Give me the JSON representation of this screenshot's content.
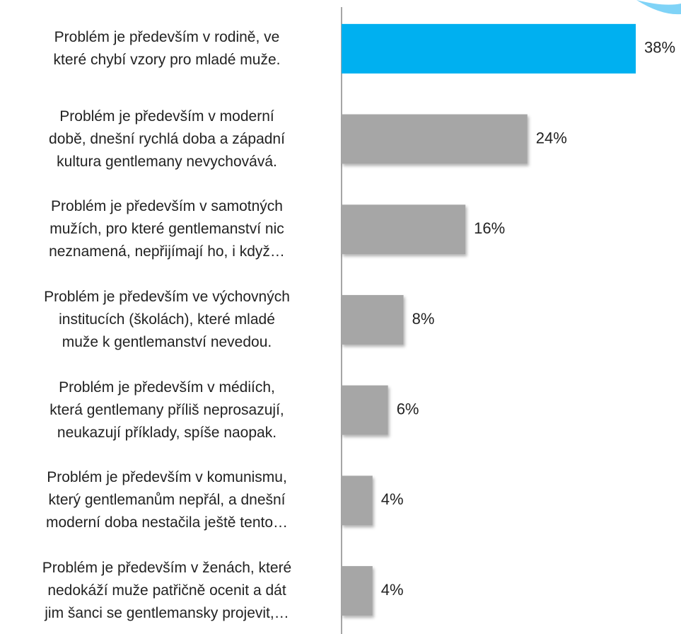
{
  "chart_data": {
    "type": "barh",
    "categories": [
      "Problém je především v rodině, ve\nkteré chybí vzory pro mladé muže.",
      "Problém je především v moderní\ndobě, dnešní rychlá doba a západní\nkultura gentlemany nevychovává.",
      "Problém je především v samotných\nmužích, pro které gentlemanství nic\nneznamená, nepřijímají ho, i když…",
      "Problém je především ve výchovných\ninstitucích (školách), které mladé\nmuže k gentlemanství nevedou.",
      "Problém je především v médiích,\nkterá gentlemany příliš neprosazují,\nneukazují příklady, spíše naopak.",
      "Problém je především v komunismu,\nkterý gentlemanům nepřál, a dnešní\nmoderní doba nestačila ještě tento…",
      "Problém je především v ženách, které\nnedokáží muže patřičně ocenit a dát\njim šanci se gentlemansky projevit,…"
    ],
    "values": [
      38,
      24,
      16,
      8,
      6,
      4,
      4
    ],
    "value_labels": [
      "38%",
      "24%",
      "16%",
      "8%",
      "6%",
      "4%",
      "4%"
    ],
    "colors": [
      "#00b0f0",
      "#a6a6a6",
      "#a6a6a6",
      "#a6a6a6",
      "#a6a6a6",
      "#a6a6a6",
      "#a6a6a6"
    ],
    "xlim": [
      0,
      39
    ]
  }
}
